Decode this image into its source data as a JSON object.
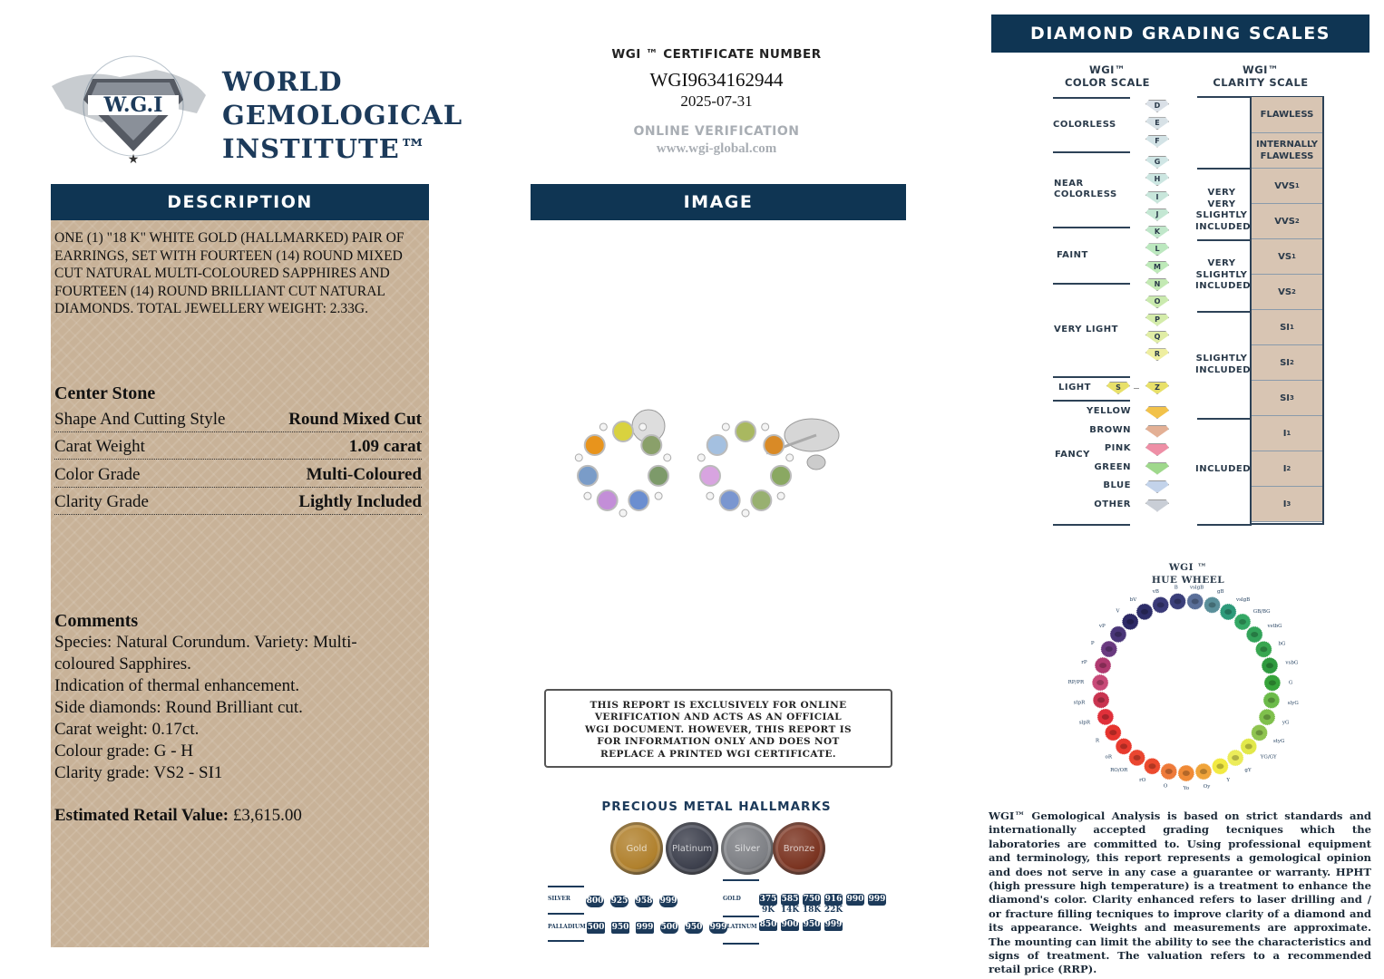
{
  "logo": {
    "ring_text": "WORLD GEMOLOGICAL INSTITUTE",
    "monogram": "W.G.I",
    "line1": "WORLD",
    "line2": "GEMOLOGICAL",
    "line3": "INSTITUTE™"
  },
  "description": {
    "header": "DESCRIPTION",
    "text": "ONE (1) \"18 K\" WHITE GOLD (HALLMARKED) PAIR OF EARRINGS, SET WITH FOURTEEN (14) ROUND MIXED CUT NATURAL MULTI-COLOURED SAPPHIRES AND FOURTEEN (14) ROUND BRILLIANT CUT NATURAL DIAMONDS. TOTAL JEWELLERY WEIGHT: 2.33g.",
    "center_stone_title": "Center Stone",
    "rows": [
      {
        "label": "Shape And Cutting Style",
        "value": "Round Mixed Cut"
      },
      {
        "label": "Carat Weight",
        "value": "1.09 carat"
      },
      {
        "label": "Color Grade",
        "value": "Multi-Coloured"
      },
      {
        "label": "Clarity Grade",
        "value": "Lightly Included"
      }
    ],
    "comments_title": "Comments",
    "comments": [
      "Species: Natural Corundum. Variety: Multi-",
      "coloured Sapphires.",
      "Indication of thermal enhancement.",
      "Side diamonds: Round Brilliant cut.",
      "Carat weight: 0.17ct.",
      "Colour grade: G - H",
      "Clarity grade: VS2 - SI1"
    ],
    "retail_label": "Estimated Retail Value:",
    "retail_value": "£3,615.00"
  },
  "certificate": {
    "label": "WGI ™ CERTIFICATE NUMBER",
    "number": "WGI9634162944",
    "date": "2025-07-31",
    "verification_label": "ONLINE VERIFICATION",
    "url": "www.wgi-global.com"
  },
  "image": {
    "header": "IMAGE"
  },
  "disclaimer": "THIS REPORT IS EXCLUSIVELY FOR ONLINE VERIFICATION AND ACTS AS AN OFFICIAL WGI DOCUMENT. HOWEVER, THIS REPORT IS FOR INFORMATION ONLY AND DOES NOT REPLACE A PRINTED WGI CERTIFICATE.",
  "hallmarks": {
    "title": "PRECIOUS METAL HALLMARKS",
    "coins": [
      {
        "label": "Gold",
        "color": "#b0802c"
      },
      {
        "label": "Platinum",
        "color": "#3c3f4c"
      },
      {
        "label": "Silver",
        "color": "#7d7f84"
      },
      {
        "label": "Bronze",
        "color": "#7a3320"
      }
    ],
    "silver_label": "SILVER",
    "silver": [
      "800",
      "925",
      "958",
      "999"
    ],
    "palladium_label": "PALLADIUM",
    "palladium": [
      "500",
      "950",
      "999",
      "500",
      "950",
      "999"
    ],
    "gold_label": "GOLD",
    "gold": [
      "375",
      "585",
      "750",
      "916",
      "990",
      "999"
    ],
    "gold_karats": [
      "9K",
      "14K",
      "18K",
      "22K"
    ],
    "platinum_label": "PLATINUM",
    "platinum": [
      "850",
      "900",
      "950",
      "999"
    ]
  },
  "grading": {
    "header": "DIAMOND GRADING  SCALES",
    "color_scale_title": [
      "WGI™",
      "COLOR SCALE"
    ],
    "clarity_scale_title": [
      "WGI™",
      "CLARITY SCALE"
    ],
    "color_groups": [
      "COLORLESS",
      "NEAR COLORLESS",
      "FAINT",
      "VERY LIGHT",
      "LIGHT",
      "FANCY"
    ],
    "grades": [
      "D",
      "E",
      "F",
      "G",
      "H",
      "I",
      "J",
      "K",
      "L",
      "M",
      "N",
      "O",
      "P",
      "Q",
      "R"
    ],
    "light_grades": [
      "S",
      "Z"
    ],
    "fancy": [
      {
        "label": "YELLOW",
        "color": "#f2c24a"
      },
      {
        "label": "BROWN",
        "color": "#e3b095"
      },
      {
        "label": "PINK",
        "color": "#ee8fa6"
      },
      {
        "label": "GREEN",
        "color": "#9fd88c"
      },
      {
        "label": "BLUE",
        "color": "#c3d3ea"
      },
      {
        "label": "OTHER",
        "color": "#c9ced6"
      }
    ],
    "clarity_groups": [
      "VERY VERY SLIGHTLY INCLUDED",
      "VERY SLIGHTLY INCLUDED",
      "SLIGHTLY INCLUDED",
      "INCLUDED"
    ],
    "clarity_cells": [
      {
        "main": "FLAWLESS",
        "sub": ""
      },
      {
        "main": "INTERNALLY FLAWLESS",
        "sub": ""
      },
      {
        "main": "VVS",
        "sub": "1"
      },
      {
        "main": "VVS",
        "sub": "2"
      },
      {
        "main": "VS",
        "sub": "1"
      },
      {
        "main": "VS",
        "sub": "2"
      },
      {
        "main": "SI",
        "sub": "1"
      },
      {
        "main": "SI",
        "sub": "2"
      },
      {
        "main": "SI",
        "sub": "3"
      },
      {
        "main": "I",
        "sub": "1"
      },
      {
        "main": "I",
        "sub": "2"
      },
      {
        "main": "I",
        "sub": "3"
      }
    ]
  },
  "hue_wheel": {
    "title": [
      "WGI ™",
      "HUE WHEEL"
    ],
    "hues": [
      {
        "l": "B",
        "c": "#3b3f7a"
      },
      {
        "l": "vslgB",
        "c": "#5a6f99"
      },
      {
        "l": "gB",
        "c": "#5a8f9a"
      },
      {
        "l": "vslgB",
        "c": "#2e9a7a"
      },
      {
        "l": "GB/BG",
        "c": "#34a865"
      },
      {
        "l": "vstbG",
        "c": "#33a35a"
      },
      {
        "l": "bG",
        "c": "#38a650"
      },
      {
        "l": "vsbG",
        "c": "#2f9a3f"
      },
      {
        "l": "G",
        "c": "#36a33a"
      },
      {
        "l": "slyG",
        "c": "#6cbb4a"
      },
      {
        "l": "yG",
        "c": "#7fc04c"
      },
      {
        "l": "styG",
        "c": "#8fc450"
      },
      {
        "l": "YG/GY",
        "c": "#e2e84a"
      },
      {
        "l": "gY",
        "c": "#ecec5a"
      },
      {
        "l": "Y",
        "c": "#f2ea42"
      },
      {
        "l": "Oy",
        "c": "#f0a43a"
      },
      {
        "l": "Yo",
        "c": "#f08a36"
      },
      {
        "l": "O",
        "c": "#ee7a3a"
      },
      {
        "l": "rO",
        "c": "#ec4a2e"
      },
      {
        "l": "RO/OR",
        "c": "#ea4630"
      },
      {
        "l": "oR",
        "c": "#e83a2e"
      },
      {
        "l": "R",
        "c": "#e6342e"
      },
      {
        "l": "slpR",
        "c": "#e0303a"
      },
      {
        "l": "stpR",
        "c": "#c93450"
      },
      {
        "l": "RP/PR",
        "c": "#c84a78"
      },
      {
        "l": "rP",
        "c": "#b03a70"
      },
      {
        "l": "P",
        "c": "#6a3a80"
      },
      {
        "l": "vP",
        "c": "#4a3678"
      },
      {
        "l": "V",
        "c": "#2e2a66"
      },
      {
        "l": "bV",
        "c": "#2e2e6a"
      },
      {
        "l": "vB",
        "c": "#3a3a78"
      }
    ]
  },
  "footer": "WGI™ Gemological Analysis is based on strict standards and internationally accepted grading tecniques which the laboratories are committed to. Using professional equipment and terminology, this report represents a gemological opinion and does not serve in any case a guarantee or warranty. HPHT (high pressure high temperature) is a treatment to enhance the diamond's color. Clarity enhanced refers to laser drilling and / or fracture filling tecniques to improve clarity of a diamond and its appearance. Weights and measurements are approximate. The mounting can limit the ability to see the characteristics and signs of treatment. The valuation refers to a recommended retail price (RRP)."
}
